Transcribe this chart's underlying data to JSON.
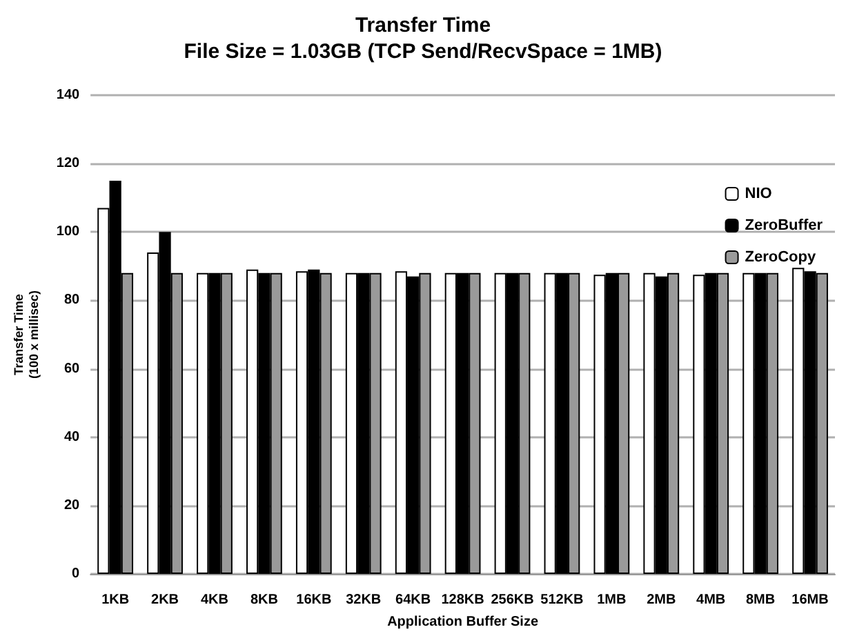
{
  "chart_data": {
    "type": "bar",
    "title": "Transfer Time",
    "subtitle": "File Size = 1.03GB (TCP Send/RecvSpace = 1MB)",
    "xlabel": "Application Buffer Size",
    "ylabel": "Transfer Time\n(100 x millisec)",
    "categories": [
      "1KB",
      "2KB",
      "4KB",
      "8KB",
      "16KB",
      "32KB",
      "64KB",
      "128KB",
      "256KB",
      "512KB",
      "1MB",
      "2MB",
      "4MB",
      "8MB",
      "16MB"
    ],
    "series": [
      {
        "name": "NIO",
        "color": "#ffffff",
        "values": [
          107,
          94,
          88,
          89,
          88.5,
          88,
          88.5,
          88,
          88,
          88,
          87.5,
          88,
          87.5,
          88,
          89.5
        ]
      },
      {
        "name": "ZeroBuffer",
        "color": "#000000",
        "values": [
          115,
          100,
          88,
          88,
          89,
          88,
          87,
          88,
          88,
          88,
          88,
          87,
          88,
          88,
          88.5
        ]
      },
      {
        "name": "ZeroCopy",
        "color": "#9a9a9a",
        "values": [
          88,
          88,
          88,
          88,
          88,
          88,
          88,
          88,
          88,
          88,
          88,
          88,
          88,
          88,
          88
        ]
      }
    ],
    "ylim": [
      0,
      140
    ],
    "yticks": [
      0,
      20,
      40,
      60,
      80,
      100,
      120,
      140
    ],
    "grid": "y",
    "legend": "top right"
  }
}
